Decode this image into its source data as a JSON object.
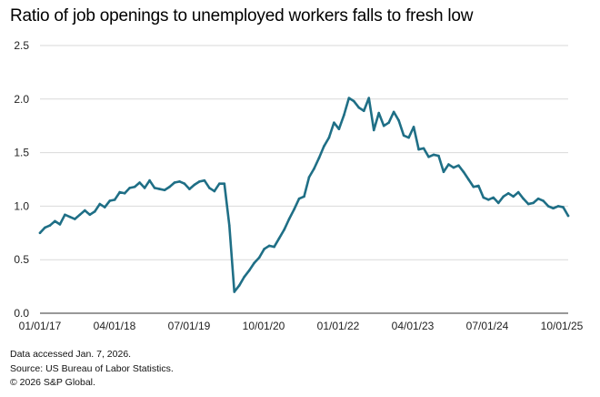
{
  "chart_data": {
    "type": "line",
    "title": "Ratio of job openings to unemployed workers falls to fresh low",
    "xlabel": "",
    "ylabel": "",
    "ylim": [
      0,
      2.5
    ],
    "yticks": [
      "0.0",
      "0.5",
      "1.0",
      "1.5",
      "2.0",
      "2.5"
    ],
    "xticks": [
      "01/01/17",
      "04/01/18",
      "07/01/19",
      "10/01/20",
      "01/01/22",
      "04/01/23",
      "07/01/24",
      "10/01/25"
    ],
    "grid": true,
    "series_color": "#1f6f86",
    "gridline_color": "#d9d9d9",
    "x": [
      "2017-01",
      "2017-02",
      "2017-03",
      "2017-04",
      "2017-05",
      "2017-06",
      "2017-07",
      "2017-08",
      "2017-09",
      "2017-10",
      "2017-11",
      "2017-12",
      "2018-01",
      "2018-02",
      "2018-03",
      "2018-04",
      "2018-05",
      "2018-06",
      "2018-07",
      "2018-08",
      "2018-09",
      "2018-10",
      "2018-11",
      "2018-12",
      "2019-01",
      "2019-02",
      "2019-03",
      "2019-04",
      "2019-05",
      "2019-06",
      "2019-07",
      "2019-08",
      "2019-09",
      "2019-10",
      "2019-11",
      "2019-12",
      "2020-01",
      "2020-02",
      "2020-03",
      "2020-04",
      "2020-05",
      "2020-06",
      "2020-07",
      "2020-08",
      "2020-09",
      "2020-10",
      "2020-11",
      "2020-12",
      "2021-01",
      "2021-02",
      "2021-03",
      "2021-04",
      "2021-05",
      "2021-06",
      "2021-07",
      "2021-08",
      "2021-09",
      "2021-10",
      "2021-11",
      "2021-12",
      "2022-01",
      "2022-02",
      "2022-03",
      "2022-04",
      "2022-05",
      "2022-06",
      "2022-07",
      "2022-08",
      "2022-09",
      "2022-10",
      "2022-11",
      "2022-12",
      "2023-01",
      "2023-02",
      "2023-03",
      "2023-04",
      "2023-05",
      "2023-06",
      "2023-07",
      "2023-08",
      "2023-09",
      "2023-10",
      "2023-11",
      "2023-12",
      "2024-01",
      "2024-02",
      "2024-03",
      "2024-04",
      "2024-05",
      "2024-06",
      "2024-07",
      "2024-08",
      "2024-09",
      "2024-10",
      "2024-11",
      "2024-12",
      "2025-01",
      "2025-02",
      "2025-03",
      "2025-04",
      "2025-05",
      "2025-06",
      "2025-07",
      "2025-08",
      "2025-09",
      "2025-10",
      "2025-11"
    ],
    "values": [
      0.75,
      0.8,
      0.82,
      0.86,
      0.83,
      0.92,
      0.9,
      0.88,
      0.92,
      0.96,
      0.92,
      0.95,
      1.02,
      0.99,
      1.05,
      1.06,
      1.13,
      1.12,
      1.17,
      1.18,
      1.22,
      1.17,
      1.24,
      1.17,
      1.16,
      1.15,
      1.18,
      1.22,
      1.23,
      1.21,
      1.16,
      1.2,
      1.23,
      1.24,
      1.17,
      1.14,
      1.21,
      1.21,
      0.82,
      0.2,
      0.26,
      0.34,
      0.4,
      0.47,
      0.52,
      0.6,
      0.63,
      0.62,
      0.7,
      0.78,
      0.88,
      0.97,
      1.07,
      1.09,
      1.27,
      1.35,
      1.45,
      1.56,
      1.64,
      1.78,
      1.72,
      1.85,
      2.01,
      1.98,
      1.92,
      1.89,
      2.01,
      1.71,
      1.87,
      1.75,
      1.78,
      1.88,
      1.8,
      1.66,
      1.64,
      1.74,
      1.53,
      1.54,
      1.46,
      1.48,
      1.47,
      1.32,
      1.39,
      1.36,
      1.38,
      1.32,
      1.25,
      1.18,
      1.19,
      1.08,
      1.06,
      1.08,
      1.03,
      1.09,
      1.12,
      1.09,
      1.13,
      1.07,
      1.02,
      1.03,
      1.07,
      1.05,
      1.0,
      0.98,
      1.0,
      0.99,
      0.91
    ]
  },
  "footer": {
    "line1": "Data accessed Jan. 7, 2026.",
    "line2": "Source: US Bureau of Labor Statistics.",
    "line3": "© 2026 S&P Global."
  }
}
